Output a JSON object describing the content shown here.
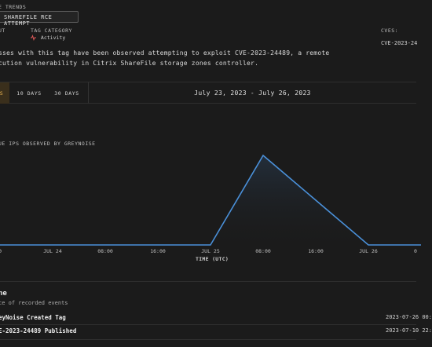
{
  "header": {
    "section_label": "E TRENDS",
    "tag_name": "SHAREFILE RCE ATTEMPT",
    "intent_label": "UT",
    "tag_category_label": "TAG CATEGORY",
    "tag_category_value": "Activity",
    "cves_label": "CVES:",
    "cve_value": "CVE-2023-24"
  },
  "description": {
    "line1": "sses with this tag have been observed attempting to exploit CVE-2023-24489, a remote",
    "line2": "cution vulnerability in Citrix ShareFile storage zones controller."
  },
  "range": {
    "active": "S",
    "option_10": "10 DAYS",
    "option_30": "30 DAYS",
    "date_range": "July 23, 2023 - July 26, 2023"
  },
  "chart_data": {
    "type": "area",
    "title": "UE IPS OBSERVED BY GREYNOISE",
    "xlabel": "TIME (UTC)",
    "x_ticks": [
      "00",
      "JUL 24",
      "08:00",
      "16:00",
      "JUL 25",
      "08:00",
      "16:00",
      "JUL 26"
    ],
    "x": [
      0,
      4,
      5,
      6,
      7,
      8
    ],
    "values": [
      0,
      0,
      1,
      0.5,
      0,
      0
    ],
    "line_color": "#4a90d9",
    "grid": false
  },
  "timeline": {
    "title": "ne",
    "subtitle": "ce of recorded events",
    "events": [
      {
        "label": "eyNoise Created Tag",
        "date": "2023-07-26 00:"
      },
      {
        "label": "E-2023-24489 Published",
        "date": "2023-07-10 22:"
      }
    ]
  },
  "colors": {
    "background": "#1b1b1b",
    "accent": "#e9b24f",
    "line": "#4a90d9",
    "activity_icon": "#e05a5a"
  }
}
